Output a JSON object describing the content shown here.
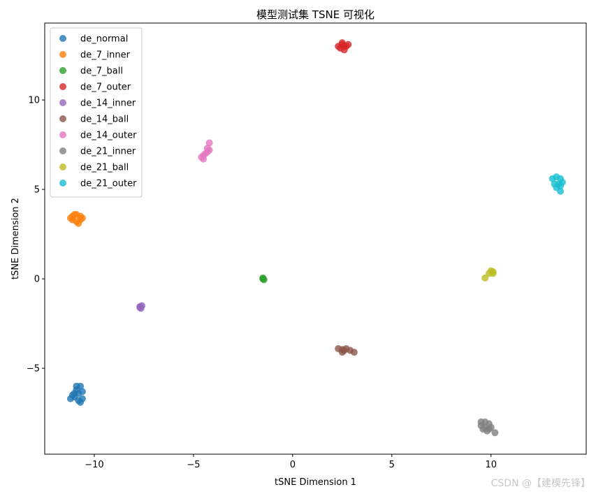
{
  "chart_data": {
    "type": "scatter",
    "title": "模型测试集 TSNE 可视化",
    "xlabel": "tSNE Dimension 1",
    "ylabel": "tSNE Dimension 2",
    "xlim": [
      -12.5,
      14.8
    ],
    "ylim": [
      -9.8,
      14.3
    ],
    "xticks": [
      -10,
      -5,
      0,
      5,
      10
    ],
    "yticks": [
      -5,
      0,
      5,
      10
    ],
    "legend_position": "upper-left",
    "grid": false,
    "series": [
      {
        "name": "de_normal",
        "color": "#1f77b4",
        "points": [
          [
            -10.9,
            -6.0
          ],
          [
            -10.7,
            -6.0
          ],
          [
            -10.6,
            -6.3
          ],
          [
            -10.8,
            -6.4
          ],
          [
            -11.0,
            -6.6
          ],
          [
            -11.2,
            -6.7
          ],
          [
            -10.7,
            -6.9
          ],
          [
            -10.9,
            -6.2
          ],
          [
            -10.6,
            -6.7
          ],
          [
            -11.0,
            -6.4
          ],
          [
            -10.8,
            -6.8
          ],
          [
            -11.1,
            -6.5
          ]
        ]
      },
      {
        "name": "de_7_inner",
        "color": "#ff7f0e",
        "points": [
          [
            -11.1,
            3.5
          ],
          [
            -10.9,
            3.6
          ],
          [
            -10.7,
            3.5
          ],
          [
            -10.7,
            3.3
          ],
          [
            -10.9,
            3.2
          ],
          [
            -11.1,
            3.3
          ],
          [
            -11.2,
            3.4
          ],
          [
            -10.8,
            3.1
          ],
          [
            -11.0,
            3.6
          ],
          [
            -10.6,
            3.4
          ]
        ]
      },
      {
        "name": "de_7_ball",
        "color": "#2ca02c",
        "points": [
          [
            -1.5,
            0.0
          ],
          [
            -1.5,
            0.05
          ],
          [
            -1.45,
            -0.05
          ]
        ]
      },
      {
        "name": "de_7_outer",
        "color": "#d62728",
        "points": [
          [
            2.3,
            13.0
          ],
          [
            2.5,
            13.1
          ],
          [
            2.7,
            13.0
          ],
          [
            2.6,
            12.8
          ],
          [
            2.4,
            12.9
          ],
          [
            2.8,
            13.1
          ],
          [
            2.5,
            13.2
          ],
          [
            2.6,
            13.0
          ]
        ]
      },
      {
        "name": "de_14_inner",
        "color": "#9467bd",
        "points": [
          [
            -7.7,
            -1.6
          ],
          [
            -7.6,
            -1.5
          ],
          [
            -7.65,
            -1.65
          ],
          [
            -7.7,
            -1.55
          ]
        ]
      },
      {
        "name": "de_14_ball",
        "color": "#8c564b",
        "points": [
          [
            2.3,
            -3.9
          ],
          [
            2.5,
            -3.95
          ],
          [
            2.7,
            -3.9
          ],
          [
            2.9,
            -4.0
          ],
          [
            3.1,
            -4.1
          ],
          [
            2.5,
            -4.1
          ],
          [
            2.6,
            -4.0
          ]
        ]
      },
      {
        "name": "de_14_outer",
        "color": "#e377c2",
        "points": [
          [
            -4.6,
            6.8
          ],
          [
            -4.5,
            6.9
          ],
          [
            -4.4,
            7.0
          ],
          [
            -4.2,
            7.2
          ],
          [
            -4.3,
            7.1
          ],
          [
            -4.2,
            7.6
          ],
          [
            -4.5,
            6.7
          ],
          [
            -4.3,
            7.3
          ]
        ]
      },
      {
        "name": "de_21_inner",
        "color": "#7f7f7f",
        "points": [
          [
            9.5,
            -8.0
          ],
          [
            9.7,
            -8.0
          ],
          [
            9.9,
            -8.1
          ],
          [
            10.0,
            -8.3
          ],
          [
            10.2,
            -8.6
          ],
          [
            9.8,
            -8.5
          ],
          [
            9.6,
            -8.4
          ],
          [
            9.5,
            -8.2
          ],
          [
            9.9,
            -8.4
          ],
          [
            9.7,
            -8.3
          ]
        ]
      },
      {
        "name": "de_21_ball",
        "color": "#bcbd22",
        "points": [
          [
            9.7,
            0.05
          ],
          [
            9.9,
            0.3
          ],
          [
            10.1,
            0.4
          ],
          [
            10.0,
            0.45
          ],
          [
            10.1,
            0.3
          ]
        ]
      },
      {
        "name": "de_21_outer",
        "color": "#17becf",
        "points": [
          [
            13.1,
            5.6
          ],
          [
            13.3,
            5.7
          ],
          [
            13.5,
            5.6
          ],
          [
            13.6,
            5.4
          ],
          [
            13.4,
            5.3
          ],
          [
            13.2,
            5.3
          ],
          [
            13.5,
            4.9
          ],
          [
            13.3,
            5.1
          ],
          [
            13.5,
            5.2
          ]
        ]
      }
    ]
  },
  "watermark": "CSDN @【建模先锋】"
}
